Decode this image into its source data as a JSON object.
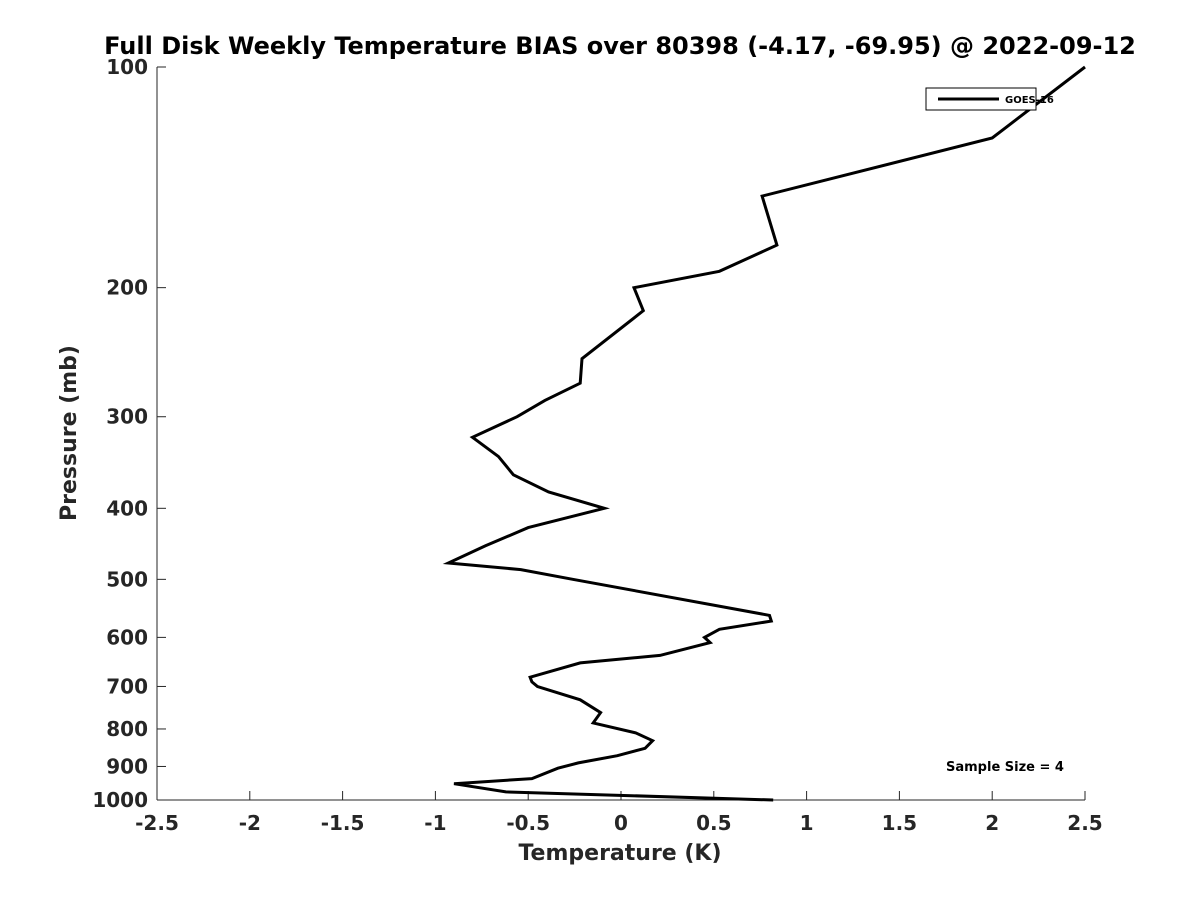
{
  "chart_data": {
    "type": "line",
    "title": "Full Disk Weekly Temperature BIAS over 80398 (-4.17, -69.95) @ 2022-09-12",
    "xlabel": "Temperature (K)",
    "ylabel": "Pressure (mb)",
    "xlim": [
      -2.5,
      2.5
    ],
    "ylim": [
      100,
      1000
    ],
    "yscale": "log",
    "xticks": [
      -2.5,
      -2,
      -1.5,
      -1,
      -0.5,
      0,
      0.5,
      1,
      1.5,
      2,
      2.5
    ],
    "xtick_labels": [
      "-2.5",
      "-2",
      "-1.5",
      "-1",
      "-0.5",
      "0",
      "0.5",
      "1",
      "1.5",
      "2",
      "2.5"
    ],
    "yticks": [
      100,
      200,
      300,
      400,
      500,
      600,
      700,
      800,
      900,
      1000
    ],
    "ytick_labels": [
      "100",
      "200",
      "300",
      "400",
      "500",
      "600",
      "700",
      "800",
      "900",
      "1000"
    ],
    "grid": false,
    "legend": {
      "position": "top-right",
      "entries": [
        "GOES-16"
      ]
    },
    "annotation": "Sample Size = 4",
    "series": [
      {
        "name": "GOES-16",
        "color": "#000000",
        "points": [
          [
            2.5,
            100
          ],
          [
            2.0,
            125
          ],
          [
            0.76,
            150
          ],
          [
            0.84,
            175
          ],
          [
            0.53,
            190
          ],
          [
            0.07,
            200
          ],
          [
            0.12,
            215
          ],
          [
            -0.21,
            250
          ],
          [
            -0.22,
            270
          ],
          [
            -0.41,
            285
          ],
          [
            -0.56,
            300
          ],
          [
            -0.8,
            320
          ],
          [
            -0.66,
            340
          ],
          [
            -0.58,
            360
          ],
          [
            -0.39,
            380
          ],
          [
            -0.09,
            400
          ],
          [
            -0.5,
            425
          ],
          [
            -0.73,
            450
          ],
          [
            -0.93,
            475
          ],
          [
            -0.54,
            485
          ],
          [
            -0.26,
            500
          ],
          [
            0.8,
            560
          ],
          [
            0.81,
            570
          ],
          [
            0.53,
            585
          ],
          [
            0.45,
            600
          ],
          [
            0.48,
            610
          ],
          [
            0.21,
            635
          ],
          [
            -0.22,
            650
          ],
          [
            -0.49,
            680
          ],
          [
            -0.48,
            690
          ],
          [
            -0.45,
            700
          ],
          [
            -0.22,
            730
          ],
          [
            -0.11,
            760
          ],
          [
            -0.15,
            785
          ],
          [
            0.08,
            810
          ],
          [
            0.17,
            830
          ],
          [
            0.13,
            850
          ],
          [
            -0.02,
            870
          ],
          [
            -0.23,
            890
          ],
          [
            -0.34,
            905
          ],
          [
            -0.48,
            935
          ],
          [
            -0.9,
            950
          ],
          [
            -0.62,
            975
          ],
          [
            0.82,
            1000
          ]
        ]
      }
    ]
  }
}
